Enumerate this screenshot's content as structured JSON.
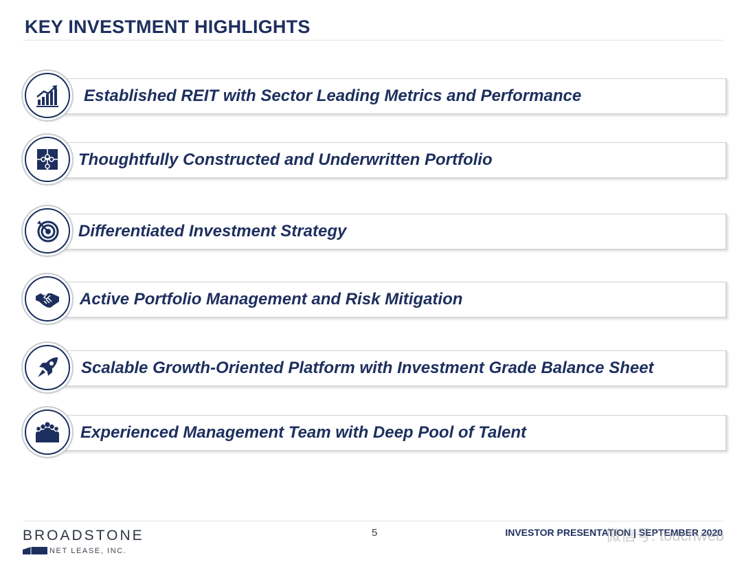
{
  "title": "KEY INVESTMENT HIGHLIGHTS",
  "highlights": [
    {
      "label": "Established REIT with Sector Leading Metrics and Performance",
      "icon": "bar-chart-growth-icon"
    },
    {
      "label": "Thoughtfully Constructed and Underwritten Portfolio",
      "icon": "puzzle-icon"
    },
    {
      "label": "Differentiated Investment Strategy",
      "icon": "target-icon"
    },
    {
      "label": "Active Portfolio Management and Risk Mitigation",
      "icon": "handshake-icon"
    },
    {
      "label": "Scalable Growth-Oriented Platform with Investment Grade Balance Sheet",
      "icon": "rocket-icon"
    },
    {
      "label": "Experienced Management Team with Deep Pool of Talent",
      "icon": "people-group-icon"
    }
  ],
  "footer": {
    "logo_name": "BROADSTONE",
    "logo_sub": "NET LEASE, INC.",
    "page_number": "5",
    "presentation": "INVESTOR PRESENTATION | SEPTEMBER 2020",
    "watermark": "微信号: touchweb"
  },
  "colors": {
    "navy": "#1d2f5e",
    "bar_border": "#cfd2d8",
    "background": "#ffffff"
  }
}
